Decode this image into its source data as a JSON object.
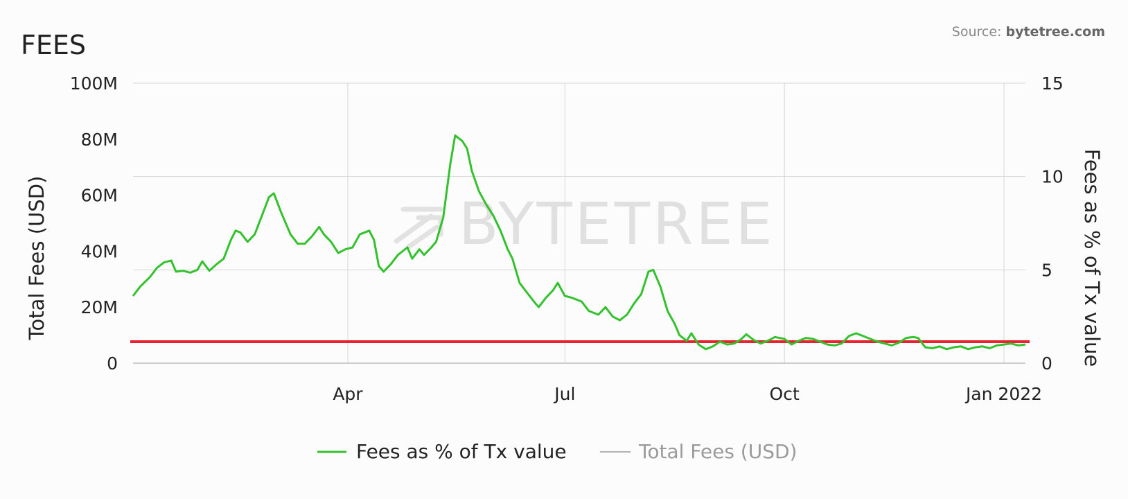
{
  "title": "FEES",
  "source": {
    "label": "Source: ",
    "site": "bytetree.com"
  },
  "watermark": "BYTETREE",
  "colors": {
    "series": "#33c12e",
    "reference_line": "#e8232f",
    "grid": "#d6d6d6",
    "muted": "#9a9a9a"
  },
  "chart_data": {
    "type": "line",
    "title": "FEES",
    "x_axis": {
      "type": "date",
      "range": [
        "2021-01-01",
        "2022-01-10"
      ],
      "ticks": [
        {
          "date": "2021-04-01",
          "label": "Apr"
        },
        {
          "date": "2021-07-01",
          "label": "Jul"
        },
        {
          "date": "2021-10-01",
          "label": "Oct"
        },
        {
          "date": "2022-01-01",
          "label": "Jan 2022"
        }
      ]
    },
    "y_left": {
      "label": "Total Fees (USD)",
      "range": [
        0,
        100000000
      ],
      "ticks": [
        {
          "value": 0,
          "label": "0"
        },
        {
          "value": 20000000,
          "label": "20M"
        },
        {
          "value": 40000000,
          "label": "40M"
        },
        {
          "value": 60000000,
          "label": "60M"
        },
        {
          "value": 80000000,
          "label": "80M"
        },
        {
          "value": 100000000,
          "label": "100M"
        }
      ]
    },
    "y_right": {
      "label": "Fees as % of Tx value",
      "range": [
        0,
        15
      ],
      "ticks": [
        {
          "value": 0,
          "label": "0"
        },
        {
          "value": 5,
          "label": "5"
        },
        {
          "value": 10,
          "label": "10"
        },
        {
          "value": 15,
          "label": "15"
        }
      ]
    },
    "grid": true,
    "legend_position": "bottom",
    "reference_line": {
      "axis": "right",
      "value": 1.15
    },
    "series": [
      {
        "name": "Fees as % of Tx value",
        "axis": "right",
        "visible": true,
        "points": [
          [
            "2021-01-01",
            3.6
          ],
          [
            "2021-01-04",
            4.1
          ],
          [
            "2021-01-08",
            4.6
          ],
          [
            "2021-01-11",
            5.1
          ],
          [
            "2021-01-14",
            5.4
          ],
          [
            "2021-01-17",
            5.5
          ],
          [
            "2021-01-19",
            4.9
          ],
          [
            "2021-01-22",
            4.95
          ],
          [
            "2021-01-25",
            4.85
          ],
          [
            "2021-01-28",
            5.0
          ],
          [
            "2021-01-30",
            5.45
          ],
          [
            "2021-02-02",
            4.95
          ],
          [
            "2021-02-05",
            5.3
          ],
          [
            "2021-02-08",
            5.6
          ],
          [
            "2021-02-11",
            6.6
          ],
          [
            "2021-02-13",
            7.1
          ],
          [
            "2021-02-15",
            7.0
          ],
          [
            "2021-02-18",
            6.5
          ],
          [
            "2021-02-21",
            6.9
          ],
          [
            "2021-02-24",
            7.9
          ],
          [
            "2021-02-27",
            8.9
          ],
          [
            "2021-03-01",
            9.1
          ],
          [
            "2021-03-04",
            8.1
          ],
          [
            "2021-03-08",
            6.9
          ],
          [
            "2021-03-11",
            6.4
          ],
          [
            "2021-03-14",
            6.4
          ],
          [
            "2021-03-17",
            6.8
          ],
          [
            "2021-03-20",
            7.3
          ],
          [
            "2021-03-22",
            6.9
          ],
          [
            "2021-03-25",
            6.5
          ],
          [
            "2021-03-28",
            5.9
          ],
          [
            "2021-03-31",
            6.1
          ],
          [
            "2021-04-03",
            6.2
          ],
          [
            "2021-04-06",
            6.9
          ],
          [
            "2021-04-10",
            7.1
          ],
          [
            "2021-04-12",
            6.6
          ],
          [
            "2021-04-14",
            5.2
          ],
          [
            "2021-04-16",
            4.9
          ],
          [
            "2021-04-19",
            5.3
          ],
          [
            "2021-04-22",
            5.8
          ],
          [
            "2021-04-26",
            6.2
          ],
          [
            "2021-04-28",
            5.6
          ],
          [
            "2021-05-01",
            6.1
          ],
          [
            "2021-05-03",
            5.8
          ],
          [
            "2021-05-06",
            6.2
          ],
          [
            "2021-05-08",
            6.5
          ],
          [
            "2021-05-11",
            7.8
          ],
          [
            "2021-05-14",
            10.7
          ],
          [
            "2021-05-16",
            12.2
          ],
          [
            "2021-05-19",
            11.9
          ],
          [
            "2021-05-21",
            11.5
          ],
          [
            "2021-05-23",
            10.3
          ],
          [
            "2021-05-26",
            9.2
          ],
          [
            "2021-05-29",
            8.5
          ],
          [
            "2021-06-01",
            7.9
          ],
          [
            "2021-06-04",
            7.1
          ],
          [
            "2021-06-07",
            6.1
          ],
          [
            "2021-06-09",
            5.6
          ],
          [
            "2021-06-12",
            4.3
          ],
          [
            "2021-06-15",
            3.8
          ],
          [
            "2021-06-18",
            3.3
          ],
          [
            "2021-06-20",
            3.0
          ],
          [
            "2021-06-23",
            3.5
          ],
          [
            "2021-06-26",
            3.9
          ],
          [
            "2021-06-28",
            4.3
          ],
          [
            "2021-07-01",
            3.6
          ],
          [
            "2021-07-04",
            3.5
          ],
          [
            "2021-07-08",
            3.3
          ],
          [
            "2021-07-11",
            2.8
          ],
          [
            "2021-07-15",
            2.6
          ],
          [
            "2021-07-18",
            3.0
          ],
          [
            "2021-07-21",
            2.5
          ],
          [
            "2021-07-24",
            2.3
          ],
          [
            "2021-07-27",
            2.6
          ],
          [
            "2021-07-30",
            3.2
          ],
          [
            "2021-08-02",
            3.7
          ],
          [
            "2021-08-05",
            4.9
          ],
          [
            "2021-08-07",
            5.0
          ],
          [
            "2021-08-10",
            4.1
          ],
          [
            "2021-08-13",
            2.8
          ],
          [
            "2021-08-16",
            2.1
          ],
          [
            "2021-08-18",
            1.5
          ],
          [
            "2021-08-21",
            1.2
          ],
          [
            "2021-08-23",
            1.6
          ],
          [
            "2021-08-26",
            1.0
          ],
          [
            "2021-08-29",
            0.75
          ],
          [
            "2021-09-01",
            0.9
          ],
          [
            "2021-09-04",
            1.15
          ],
          [
            "2021-09-07",
            1.0
          ],
          [
            "2021-09-10",
            1.05
          ],
          [
            "2021-09-13",
            1.3
          ],
          [
            "2021-09-15",
            1.55
          ],
          [
            "2021-09-18",
            1.25
          ],
          [
            "2021-09-21",
            1.05
          ],
          [
            "2021-09-24",
            1.2
          ],
          [
            "2021-09-27",
            1.4
          ],
          [
            "2021-10-01",
            1.3
          ],
          [
            "2021-10-04",
            1.0
          ],
          [
            "2021-10-07",
            1.2
          ],
          [
            "2021-10-10",
            1.35
          ],
          [
            "2021-10-13",
            1.3
          ],
          [
            "2021-10-16",
            1.15
          ],
          [
            "2021-10-19",
            1.0
          ],
          [
            "2021-10-22",
            0.95
          ],
          [
            "2021-10-25",
            1.05
          ],
          [
            "2021-10-28",
            1.45
          ],
          [
            "2021-10-31",
            1.6
          ],
          [
            "2021-11-03",
            1.45
          ],
          [
            "2021-11-06",
            1.3
          ],
          [
            "2021-11-09",
            1.15
          ],
          [
            "2021-11-12",
            1.05
          ],
          [
            "2021-11-15",
            0.95
          ],
          [
            "2021-11-18",
            1.1
          ],
          [
            "2021-11-21",
            1.35
          ],
          [
            "2021-11-24",
            1.4
          ],
          [
            "2021-11-26",
            1.35
          ],
          [
            "2021-11-29",
            0.85
          ],
          [
            "2021-12-02",
            0.8
          ],
          [
            "2021-12-05",
            0.9
          ],
          [
            "2021-12-08",
            0.75
          ],
          [
            "2021-12-11",
            0.85
          ],
          [
            "2021-12-14",
            0.9
          ],
          [
            "2021-12-17",
            0.75
          ],
          [
            "2021-12-20",
            0.85
          ],
          [
            "2021-12-23",
            0.9
          ],
          [
            "2021-12-26",
            0.8
          ],
          [
            "2021-12-29",
            0.95
          ],
          [
            "2022-01-01",
            1.0
          ],
          [
            "2022-01-04",
            1.05
          ],
          [
            "2022-01-07",
            0.95
          ],
          [
            "2022-01-10",
            1.0
          ]
        ]
      },
      {
        "name": "Total Fees (USD)",
        "axis": "left",
        "visible": false,
        "points": []
      }
    ]
  }
}
